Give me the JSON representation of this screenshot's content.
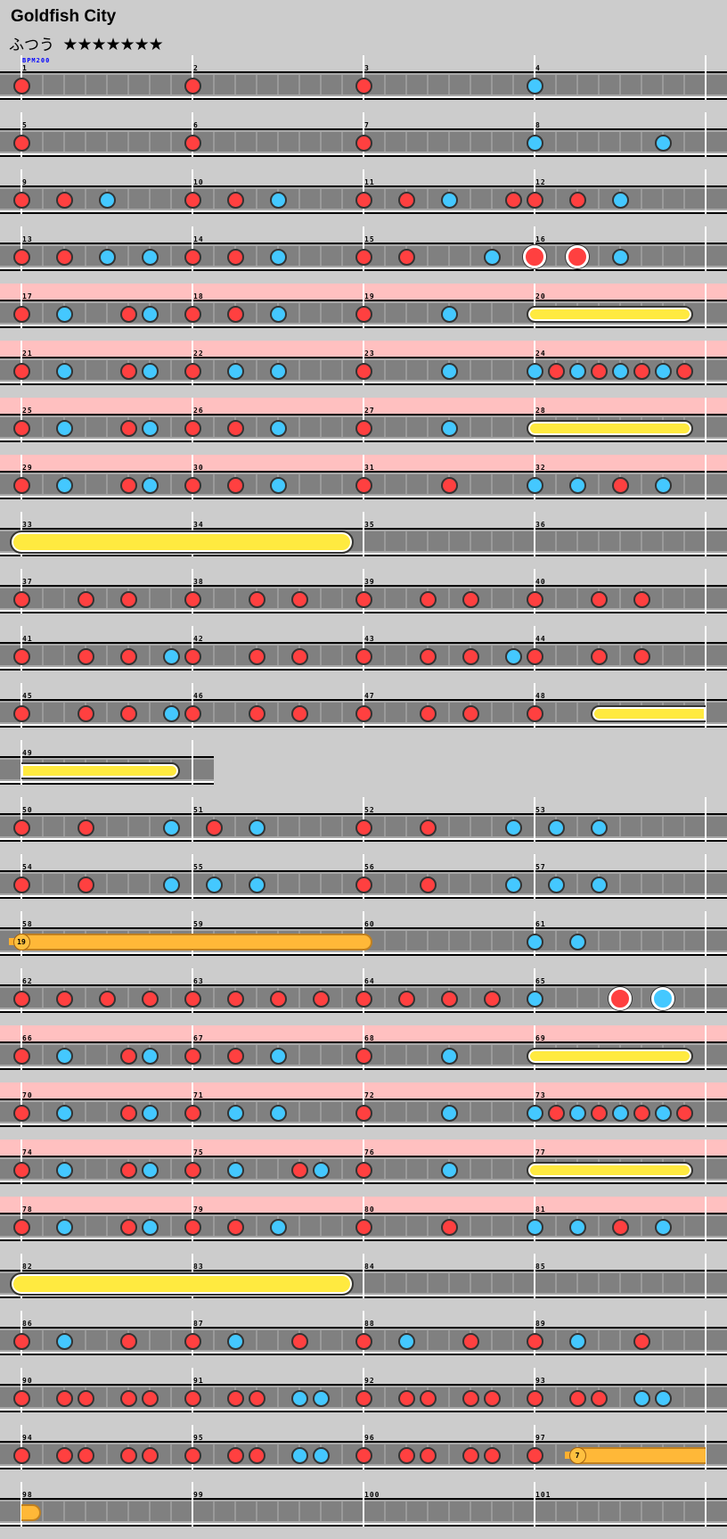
{
  "song": {
    "title": "Goldfish City",
    "difficulty": "ふつう",
    "stars": "★★★★★★★",
    "star_count": 7
  },
  "bpm_label": "BPM200",
  "colors": {
    "background": "#cccccc",
    "lane": "#808080",
    "gogo": "#ffc0c0",
    "don": "#ff4040",
    "ka": "#44c8ff",
    "roll": "#ffea40",
    "balloon": "#ffb838"
  },
  "note_types": {
    "d": "don",
    "k": "ka",
    "D": "big-don",
    "K": "big-ka"
  },
  "subdivisions_per_measure": 8,
  "rows": [
    {
      "measures": [
        "1",
        "2",
        "3",
        "4"
      ],
      "gogo": false,
      "notes": [
        [
          0,
          "d"
        ],
        [
          8,
          "d"
        ],
        [
          16,
          "d"
        ],
        [
          24,
          "k"
        ]
      ],
      "rolls": []
    },
    {
      "measures": [
        "5",
        "6",
        "7",
        "8"
      ],
      "gogo": false,
      "notes": [
        [
          0,
          "d"
        ],
        [
          8,
          "d"
        ],
        [
          16,
          "d"
        ],
        [
          24,
          "k"
        ],
        [
          30,
          "k"
        ]
      ],
      "rolls": []
    },
    {
      "measures": [
        "9",
        "10",
        "11",
        "12"
      ],
      "gogo": false,
      "notes": [
        [
          0,
          "d"
        ],
        [
          2,
          "d"
        ],
        [
          4,
          "k"
        ],
        [
          8,
          "d"
        ],
        [
          10,
          "d"
        ],
        [
          12,
          "k"
        ],
        [
          16,
          "d"
        ],
        [
          18,
          "d"
        ],
        [
          20,
          "k"
        ],
        [
          23,
          "d"
        ],
        [
          24,
          "d"
        ],
        [
          26,
          "d"
        ],
        [
          28,
          "k"
        ]
      ],
      "rolls": []
    },
    {
      "measures": [
        "13",
        "14",
        "15",
        "16"
      ],
      "gogo": false,
      "notes": [
        [
          0,
          "d"
        ],
        [
          2,
          "d"
        ],
        [
          4,
          "k"
        ],
        [
          6,
          "k"
        ],
        [
          8,
          "d"
        ],
        [
          10,
          "d"
        ],
        [
          12,
          "k"
        ],
        [
          16,
          "d"
        ],
        [
          18,
          "d"
        ],
        [
          22,
          "k"
        ],
        [
          24,
          "D"
        ],
        [
          26,
          "D"
        ],
        [
          28,
          "k"
        ]
      ],
      "rolls": []
    },
    {
      "measures": [
        "17",
        "18",
        "19",
        "20"
      ],
      "gogo": true,
      "notes": [
        [
          0,
          "d"
        ],
        [
          2,
          "k"
        ],
        [
          5,
          "d"
        ],
        [
          6,
          "k"
        ],
        [
          8,
          "d"
        ],
        [
          10,
          "d"
        ],
        [
          12,
          "k"
        ],
        [
          16,
          "d"
        ],
        [
          20,
          "k"
        ]
      ],
      "rolls": [
        {
          "kind": "small",
          "start": 24,
          "end": 31
        }
      ]
    },
    {
      "measures": [
        "21",
        "22",
        "23",
        "24"
      ],
      "gogo": true,
      "notes": [
        [
          0,
          "d"
        ],
        [
          2,
          "k"
        ],
        [
          5,
          "d"
        ],
        [
          6,
          "k"
        ],
        [
          8,
          "d"
        ],
        [
          10,
          "k"
        ],
        [
          12,
          "k"
        ],
        [
          16,
          "d"
        ],
        [
          20,
          "k"
        ],
        [
          24,
          "k"
        ],
        [
          25,
          "d"
        ],
        [
          26,
          "k"
        ],
        [
          27,
          "d"
        ],
        [
          28,
          "k"
        ],
        [
          29,
          "d"
        ],
        [
          30,
          "k"
        ],
        [
          31,
          "d"
        ]
      ],
      "rolls": []
    },
    {
      "measures": [
        "25",
        "26",
        "27",
        "28"
      ],
      "gogo": true,
      "notes": [
        [
          0,
          "d"
        ],
        [
          2,
          "k"
        ],
        [
          5,
          "d"
        ],
        [
          6,
          "k"
        ],
        [
          8,
          "d"
        ],
        [
          10,
          "d"
        ],
        [
          12,
          "k"
        ],
        [
          16,
          "d"
        ],
        [
          20,
          "k"
        ]
      ],
      "rolls": [
        {
          "kind": "small",
          "start": 24,
          "end": 31
        }
      ]
    },
    {
      "measures": [
        "29",
        "30",
        "31",
        "32"
      ],
      "gogo": true,
      "notes": [
        [
          0,
          "d"
        ],
        [
          2,
          "k"
        ],
        [
          5,
          "d"
        ],
        [
          6,
          "k"
        ],
        [
          8,
          "d"
        ],
        [
          10,
          "d"
        ],
        [
          12,
          "k"
        ],
        [
          16,
          "d"
        ],
        [
          20,
          "d"
        ],
        [
          24,
          "k"
        ],
        [
          26,
          "k"
        ],
        [
          28,
          "d"
        ],
        [
          30,
          "k"
        ]
      ],
      "rolls": []
    },
    {
      "measures": [
        "33",
        "34",
        "35",
        "36"
      ],
      "gogo": false,
      "notes": [],
      "rolls": [
        {
          "kind": "big",
          "start": 0,
          "end": 15
        }
      ]
    },
    {
      "measures": [
        "37",
        "38",
        "39",
        "40"
      ],
      "gogo": false,
      "notes": [
        [
          0,
          "d"
        ],
        [
          3,
          "d"
        ],
        [
          5,
          "d"
        ],
        [
          8,
          "d"
        ],
        [
          11,
          "d"
        ],
        [
          13,
          "d"
        ],
        [
          16,
          "d"
        ],
        [
          19,
          "d"
        ],
        [
          21,
          "d"
        ],
        [
          24,
          "d"
        ],
        [
          27,
          "d"
        ],
        [
          29,
          "d"
        ]
      ],
      "rolls": []
    },
    {
      "measures": [
        "41",
        "42",
        "43",
        "44"
      ],
      "gogo": false,
      "notes": [
        [
          0,
          "d"
        ],
        [
          3,
          "d"
        ],
        [
          5,
          "d"
        ],
        [
          7,
          "k"
        ],
        [
          8,
          "d"
        ],
        [
          11,
          "d"
        ],
        [
          13,
          "d"
        ],
        [
          16,
          "d"
        ],
        [
          19,
          "d"
        ],
        [
          21,
          "d"
        ],
        [
          23,
          "k"
        ],
        [
          24,
          "d"
        ],
        [
          27,
          "d"
        ],
        [
          29,
          "d"
        ]
      ],
      "rolls": []
    },
    {
      "measures": [
        "45",
        "46",
        "47",
        "48"
      ],
      "gogo": false,
      "notes": [
        [
          0,
          "d"
        ],
        [
          3,
          "d"
        ],
        [
          5,
          "d"
        ],
        [
          7,
          "k"
        ],
        [
          8,
          "d"
        ],
        [
          11,
          "d"
        ],
        [
          13,
          "d"
        ],
        [
          16,
          "d"
        ],
        [
          19,
          "d"
        ],
        [
          21,
          "d"
        ],
        [
          24,
          "d"
        ]
      ],
      "rolls": [
        {
          "kind": "small",
          "start": 27,
          "end": 32,
          "continues_to_next": true
        }
      ]
    },
    {
      "measures": [
        "49"
      ],
      "gogo": false,
      "notes": [],
      "rolls": [
        {
          "kind": "small",
          "start": 0,
          "end": 7,
          "continues_from_previous": true
        }
      ]
    },
    {
      "measures": [
        "50",
        "51",
        "52",
        "53"
      ],
      "gogo": false,
      "notes": [
        [
          0,
          "d"
        ],
        [
          3,
          "d"
        ],
        [
          7,
          "k"
        ],
        [
          9,
          "d"
        ],
        [
          11,
          "k"
        ],
        [
          16,
          "d"
        ],
        [
          19,
          "d"
        ],
        [
          23,
          "k"
        ],
        [
          25,
          "k"
        ],
        [
          27,
          "k"
        ]
      ],
      "rolls": []
    },
    {
      "measures": [
        "54",
        "55",
        "56",
        "57"
      ],
      "gogo": false,
      "notes": [
        [
          0,
          "d"
        ],
        [
          3,
          "d"
        ],
        [
          7,
          "k"
        ],
        [
          9,
          "k"
        ],
        [
          11,
          "k"
        ],
        [
          16,
          "d"
        ],
        [
          19,
          "d"
        ],
        [
          23,
          "k"
        ],
        [
          25,
          "k"
        ],
        [
          27,
          "k"
        ]
      ],
      "rolls": []
    },
    {
      "measures": [
        "58",
        "59",
        "60",
        "61"
      ],
      "gogo": false,
      "notes": [
        [
          24,
          "k"
        ],
        [
          26,
          "k"
        ]
      ],
      "rolls": [
        {
          "kind": "balloon",
          "start": 0,
          "end": 16,
          "count": "19"
        }
      ]
    },
    {
      "measures": [
        "62",
        "63",
        "64",
        "65"
      ],
      "gogo": false,
      "notes": [
        [
          0,
          "d"
        ],
        [
          2,
          "d"
        ],
        [
          4,
          "d"
        ],
        [
          6,
          "d"
        ],
        [
          8,
          "d"
        ],
        [
          10,
          "d"
        ],
        [
          12,
          "d"
        ],
        [
          14,
          "d"
        ],
        [
          16,
          "d"
        ],
        [
          18,
          "d"
        ],
        [
          20,
          "d"
        ],
        [
          22,
          "d"
        ],
        [
          24,
          "k"
        ],
        [
          28,
          "D"
        ],
        [
          30,
          "K"
        ]
      ],
      "rolls": []
    },
    {
      "measures": [
        "66",
        "67",
        "68",
        "69"
      ],
      "gogo": true,
      "notes": [
        [
          0,
          "d"
        ],
        [
          2,
          "k"
        ],
        [
          5,
          "d"
        ],
        [
          6,
          "k"
        ],
        [
          8,
          "d"
        ],
        [
          10,
          "d"
        ],
        [
          12,
          "k"
        ],
        [
          16,
          "d"
        ],
        [
          20,
          "k"
        ]
      ],
      "rolls": [
        {
          "kind": "small",
          "start": 24,
          "end": 31
        }
      ]
    },
    {
      "measures": [
        "70",
        "71",
        "72",
        "73"
      ],
      "gogo": true,
      "notes": [
        [
          0,
          "d"
        ],
        [
          2,
          "k"
        ],
        [
          5,
          "d"
        ],
        [
          6,
          "k"
        ],
        [
          8,
          "d"
        ],
        [
          10,
          "k"
        ],
        [
          12,
          "k"
        ],
        [
          16,
          "d"
        ],
        [
          20,
          "k"
        ],
        [
          24,
          "k"
        ],
        [
          25,
          "d"
        ],
        [
          26,
          "k"
        ],
        [
          27,
          "d"
        ],
        [
          28,
          "k"
        ],
        [
          29,
          "d"
        ],
        [
          30,
          "k"
        ],
        [
          31,
          "d"
        ]
      ],
      "rolls": []
    },
    {
      "measures": [
        "74",
        "75",
        "76",
        "77"
      ],
      "gogo": true,
      "notes": [
        [
          0,
          "d"
        ],
        [
          2,
          "k"
        ],
        [
          5,
          "d"
        ],
        [
          6,
          "k"
        ],
        [
          8,
          "d"
        ],
        [
          10,
          "k"
        ],
        [
          13,
          "d"
        ],
        [
          14,
          "k"
        ],
        [
          16,
          "d"
        ],
        [
          20,
          "k"
        ]
      ],
      "rolls": [
        {
          "kind": "small",
          "start": 24,
          "end": 31
        }
      ]
    },
    {
      "measures": [
        "78",
        "79",
        "80",
        "81"
      ],
      "gogo": true,
      "notes": [
        [
          0,
          "d"
        ],
        [
          2,
          "k"
        ],
        [
          5,
          "d"
        ],
        [
          6,
          "k"
        ],
        [
          8,
          "d"
        ],
        [
          10,
          "d"
        ],
        [
          12,
          "k"
        ],
        [
          16,
          "d"
        ],
        [
          20,
          "d"
        ],
        [
          24,
          "k"
        ],
        [
          26,
          "k"
        ],
        [
          28,
          "d"
        ],
        [
          30,
          "k"
        ]
      ],
      "rolls": []
    },
    {
      "measures": [
        "82",
        "83",
        "84",
        "85"
      ],
      "gogo": false,
      "notes": [],
      "rolls": [
        {
          "kind": "big",
          "start": 0,
          "end": 15
        }
      ]
    },
    {
      "measures": [
        "86",
        "87",
        "88",
        "89"
      ],
      "gogo": false,
      "notes": [
        [
          0,
          "d"
        ],
        [
          2,
          "k"
        ],
        [
          5,
          "d"
        ],
        [
          8,
          "d"
        ],
        [
          10,
          "k"
        ],
        [
          13,
          "d"
        ],
        [
          16,
          "d"
        ],
        [
          18,
          "k"
        ],
        [
          21,
          "d"
        ],
        [
          24,
          "d"
        ],
        [
          26,
          "k"
        ],
        [
          29,
          "d"
        ]
      ],
      "rolls": []
    },
    {
      "measures": [
        "90",
        "91",
        "92",
        "93"
      ],
      "gogo": false,
      "notes": [
        [
          0,
          "d"
        ],
        [
          2,
          "d"
        ],
        [
          3,
          "d"
        ],
        [
          5,
          "d"
        ],
        [
          6,
          "d"
        ],
        [
          8,
          "d"
        ],
        [
          10,
          "d"
        ],
        [
          11,
          "d"
        ],
        [
          13,
          "k"
        ],
        [
          14,
          "k"
        ],
        [
          16,
          "d"
        ],
        [
          18,
          "d"
        ],
        [
          19,
          "d"
        ],
        [
          21,
          "d"
        ],
        [
          22,
          "d"
        ],
        [
          24,
          "d"
        ],
        [
          26,
          "d"
        ],
        [
          27,
          "d"
        ],
        [
          29,
          "k"
        ],
        [
          30,
          "k"
        ]
      ],
      "rolls": []
    },
    {
      "measures": [
        "94",
        "95",
        "96",
        "97"
      ],
      "gogo": false,
      "notes": [
        [
          0,
          "d"
        ],
        [
          2,
          "d"
        ],
        [
          3,
          "d"
        ],
        [
          5,
          "d"
        ],
        [
          6,
          "d"
        ],
        [
          8,
          "d"
        ],
        [
          10,
          "d"
        ],
        [
          11,
          "d"
        ],
        [
          13,
          "k"
        ],
        [
          14,
          "k"
        ],
        [
          16,
          "d"
        ],
        [
          18,
          "d"
        ],
        [
          19,
          "d"
        ],
        [
          21,
          "d"
        ],
        [
          22,
          "d"
        ],
        [
          24,
          "d"
        ]
      ],
      "rolls": [
        {
          "kind": "balloon",
          "start": 26,
          "end": 32,
          "count": "7",
          "continues_to_next": true
        }
      ]
    },
    {
      "measures": [
        "98",
        "99",
        "100",
        "101"
      ],
      "gogo": false,
      "notes": [],
      "rolls": [
        {
          "kind": "balloon",
          "start": 0,
          "end": 0.5,
          "continues_from_previous": true
        }
      ]
    }
  ]
}
